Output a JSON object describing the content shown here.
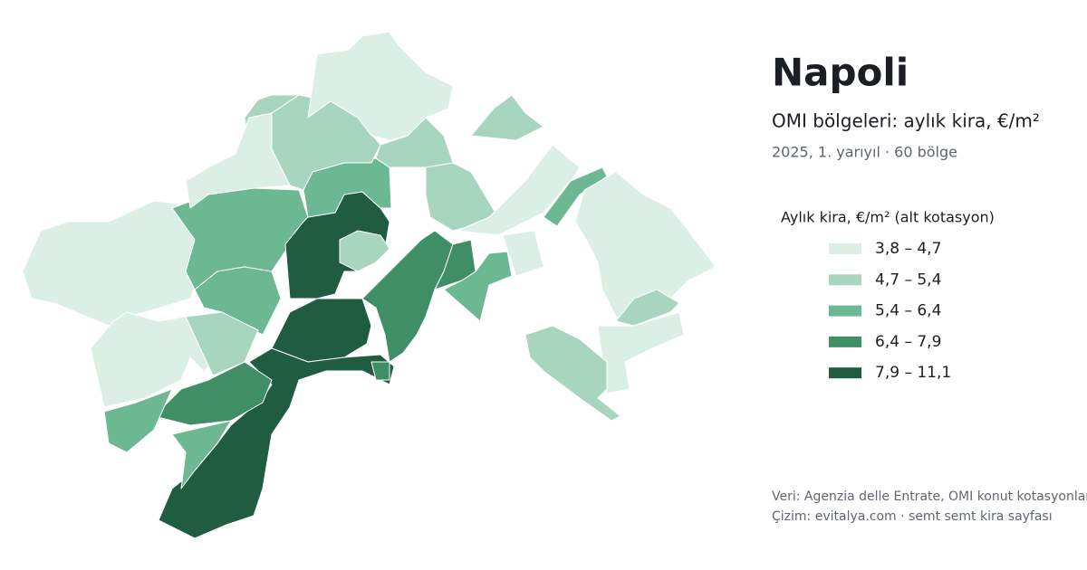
{
  "title": "Napoli",
  "subtitle": "OMI bölgeleri: aylık kira, €/m²",
  "period": "2025, 1. yarıyıl · 60 bölge",
  "legend": {
    "title": "Aylık kira, €/m² (alt kotasyon)",
    "items": [
      {
        "label": "3,8 – 4,7",
        "color": "#dcefe4"
      },
      {
        "label": "4,7 – 5,4",
        "color": "#a8d5bd"
      },
      {
        "label": "5,4 – 6,4",
        "color": "#6bb893"
      },
      {
        "label": "6,4 – 7,9",
        "color": "#3f8e66"
      },
      {
        "label": "7,9 – 11,1",
        "color": "#1f5c40"
      }
    ]
  },
  "footer": [
    "Veri: Agenzia delle Entrate, OMI konut kotasyonları",
    "Çizim: evitalya.com · semt semt kira sayfası"
  ]
}
